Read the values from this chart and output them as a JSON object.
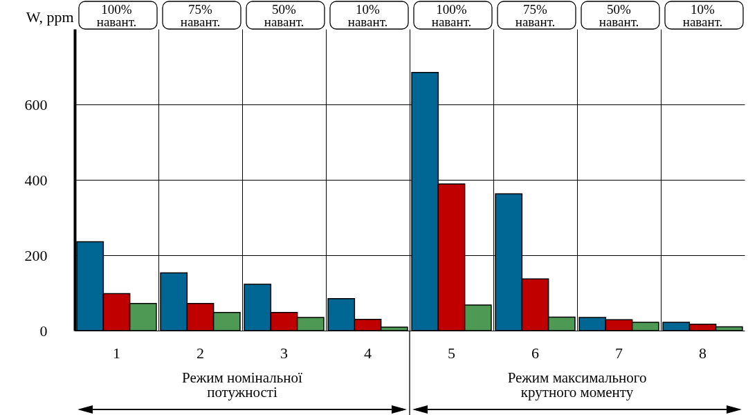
{
  "chart_data": {
    "type": "bar",
    "ylabel": "W, ppm",
    "categories": [
      "1",
      "2",
      "3",
      "4",
      "5",
      "6",
      "7",
      "8"
    ],
    "series": [
      {
        "color": "#006795",
        "values": [
          236,
          153,
          123,
          85,
          685,
          363,
          35,
          22
        ]
      },
      {
        "color": "#c00000",
        "values": [
          98,
          72,
          48,
          30,
          389,
          137,
          29,
          17
        ]
      },
      {
        "color": "#4e9a55",
        "values": [
          72,
          48,
          35,
          9,
          68,
          36,
          22,
          10
        ]
      }
    ],
    "ylim": [
      0,
      800
    ],
    "yticks": [
      0,
      200,
      400,
      600
    ],
    "grid": true,
    "legend": false,
    "annotations": [
      "100% навант.",
      "75% навант.",
      "50% навант.",
      "10% навант.",
      "100% навант.",
      "75% навант.",
      "50% навант.",
      "10% навант.",
      "Режим номінальної потужності",
      "Режим максимального крутного моменту"
    ]
  }
}
